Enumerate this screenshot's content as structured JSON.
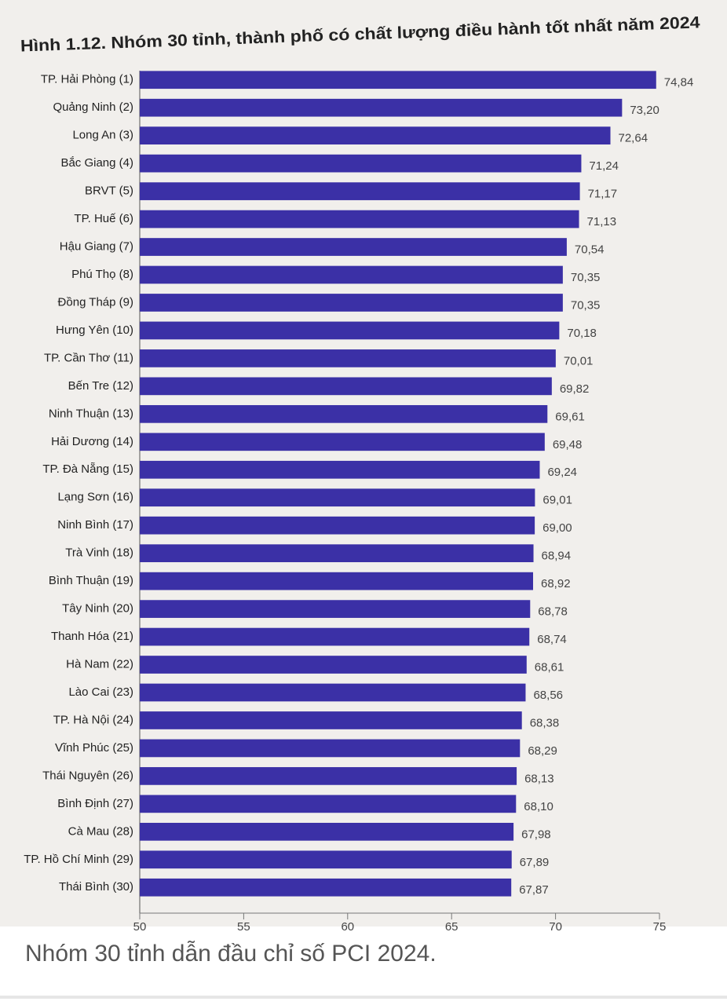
{
  "chart_data": {
    "type": "bar",
    "orientation": "horizontal",
    "title": "Hình 1.12. Nhóm 30 tỉnh, thành phố có chất lượng điều hành tốt nhất năm 2024",
    "categories": [
      "TP. Hải Phòng (1)",
      "Quảng Ninh (2)",
      "Long An (3)",
      "Bắc Giang (4)",
      "BRVT (5)",
      "TP. Huế (6)",
      "Hậu Giang (7)",
      "Phú Thọ (8)",
      "Đồng Tháp (9)",
      "Hưng Yên (10)",
      "TP. Cần Thơ (11)",
      "Bến Tre (12)",
      "Ninh Thuận (13)",
      "Hải Dương (14)",
      "TP. Đà Nẵng (15)",
      "Lạng Sơn (16)",
      "Ninh Bình (17)",
      "Trà Vinh (18)",
      "Bình Thuận (19)",
      "Tây Ninh (20)",
      "Thanh Hóa (21)",
      "Hà Nam (22)",
      "Lào Cai (23)",
      "TP. Hà Nội (24)",
      "Vĩnh Phúc (25)",
      "Thái Nguyên (26)",
      "Bình Định (27)",
      "Cà Mau (28)",
      "TP. Hồ Chí Minh (29)",
      "Thái Bình (30)"
    ],
    "values": [
      74.84,
      73.2,
      72.64,
      71.24,
      71.17,
      71.13,
      70.54,
      70.35,
      70.35,
      70.18,
      70.01,
      69.82,
      69.61,
      69.48,
      69.24,
      69.01,
      69.0,
      68.94,
      68.92,
      68.78,
      68.74,
      68.61,
      68.56,
      68.38,
      68.29,
      68.13,
      68.1,
      67.98,
      67.89,
      67.87
    ],
    "value_labels": [
      "74,84",
      "73,20",
      "72,64",
      "71,24",
      "71,17",
      "71,13",
      "70,54",
      "70,35",
      "70,35",
      "70,18",
      "70,01",
      "69,82",
      "69,61",
      "69,48",
      "69,24",
      "69,01",
      "69,00",
      "68,94",
      "68,92",
      "68,78",
      "68,74",
      "68,61",
      "68,56",
      "68,38",
      "68,29",
      "68,13",
      "68,10",
      "67,98",
      "67,89",
      "67,87"
    ],
    "color": "#3b30a6",
    "xlim": [
      50,
      75
    ],
    "xticks": [
      50,
      55,
      60,
      65,
      70,
      75
    ]
  },
  "caption": "Nhóm 30 tỉnh dẫn đầu chỉ số PCI 2024."
}
